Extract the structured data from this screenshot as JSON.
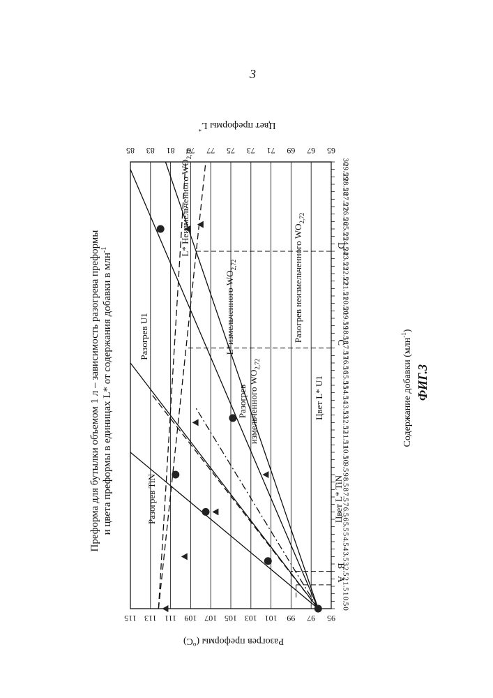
{
  "page_number": "3",
  "figure": {
    "title_line1": "Преформа для бутылки объемом 1 л – зависимость разогрева преформы",
    "title_line2": "и цвета преформы в единицах L* от содержания добавки в млн",
    "title_sup": "-1",
    "caption": "ФИГ.3",
    "x_axis_label": "Содержание добавки (млн",
    "x_axis_label_sup": "-1",
    "x_axis_label_end": ")",
    "y_left_label": "Разогрев преформы (",
    "y_left_label_sup": "o",
    "y_left_label_end": "C)",
    "y_right_label": "Цвет преформы L",
    "y_right_label_sup": "*",
    "markers": [
      "A",
      "B",
      "C",
      "D"
    ],
    "labels": {
      "heat_tin": "Разогрев TiN",
      "heat_u1": "Разогрев U1",
      "heat_milled_1": "Разогрев",
      "heat_milled_2": "измельченного WO",
      "heat_milled_sub": "2,72",
      "heat_unmilled": "Разогрев неизмельченного WO",
      "heat_unmilled_sub": "2,72",
      "color_unmilled": "L* Неизмельченного WO",
      "color_unmilled_sub": "2,72",
      "color_milled": "L*измельченного WO",
      "color_milled_sub": "2,72",
      "color_u1": "Цвет L* U1",
      "color_tin": "Цвет L* TiN"
    }
  },
  "chart_data": {
    "type": "line",
    "title": "Преформа для бутылки объемом 1 л – зависимость разогрева преформы и цвета преформы в единицах L* от содержания добавки в млн-1",
    "xlabel": "Содержание добавки (млн-1)",
    "ylabel_left": "Разогрев преформы (oC)",
    "ylabel_right": "Цвет преформы L*",
    "xlim": [
      0,
      30
    ],
    "ylim_left": [
      95,
      115
    ],
    "ylim_right": [
      65,
      85
    ],
    "x_ticks": [
      "0",
      "0.5",
      "1",
      "1.5",
      "2",
      "2.5",
      "3",
      "3.5",
      "4",
      "4.5",
      "5",
      "5.5",
      "6",
      "6.5",
      "7",
      "7.5",
      "8",
      "8.5",
      "9",
      "9.5",
      "10",
      "10.5",
      "11",
      "11.5",
      "12",
      "12.5",
      "13",
      "13.5",
      "14",
      "14.5",
      "15",
      "15.5",
      "16",
      "16.5",
      "17",
      "17.5",
      "18",
      "18.5",
      "19",
      "19.5",
      "20",
      "20.5",
      "21",
      "21.5",
      "22",
      "22.5",
      "23",
      "23.5",
      "24",
      "24.5",
      "25",
      "25.5",
      "26",
      "26.5",
      "27",
      "27.5",
      "28",
      "28.5",
      "29",
      "29.5",
      "30"
    ],
    "y_left_ticks": [
      "95",
      "97",
      "99",
      "101",
      "103",
      "105",
      "107",
      "109",
      "111",
      "113",
      "115"
    ],
    "y_right_ticks": [
      "65",
      "67",
      "69",
      "71",
      "73",
      "75",
      "77",
      "79",
      "81",
      "83",
      "85"
    ],
    "grid": true,
    "orientation": "rotated 90° counter-clockwise on page",
    "series": [
      {
        "name": "Разогрев TiN",
        "axis": "left",
        "style": "solid",
        "x": [
          0,
          10.5
        ],
        "y": [
          96.3,
          115
        ]
      },
      {
        "name": "Разогрев U1",
        "axis": "left",
        "style": "solid",
        "x": [
          0,
          16.5
        ],
        "y": [
          96.3,
          115
        ]
      },
      {
        "name": "Разогрев измельченного WO2,72",
        "axis": "left",
        "style": "solid",
        "x": [
          0,
          29.5
        ],
        "y": [
          96.3,
          115
        ]
      },
      {
        "name": "Разогрев неизмельченного WO2,72",
        "axis": "left",
        "style": "solid",
        "x": [
          0,
          30
        ],
        "y": [
          96.3,
          111.5
        ]
      },
      {
        "name": "L* Неизмельченного WO2,72",
        "axis": "right",
        "style": "dashed",
        "x": [
          0,
          30
        ],
        "y": [
          82.2,
          79.5
        ]
      },
      {
        "name": "L*измельченного WO2,72",
        "axis": "right",
        "style": "dashed",
        "x": [
          0,
          30
        ],
        "y": [
          82.2,
          77.5
        ]
      },
      {
        "name": "Цвет L* U1",
        "axis": "right",
        "style": "dashed",
        "x": [
          0,
          14.5
        ],
        "y": [
          66.3,
          83
        ]
      },
      {
        "name": "Цвет L* TiN",
        "axis": "right",
        "style": "dashdot",
        "x": [
          0,
          13.5
        ],
        "y": [
          66.3,
          78.5
        ]
      }
    ],
    "points": [
      {
        "x": 0,
        "y": 96.3
      },
      {
        "x": 3.2,
        "y": 101.3
      },
      {
        "x": 6.5,
        "y": 107.5
      },
      {
        "x": 9,
        "y": 110.5
      },
      {
        "x": 12.8,
        "y": 104.8
      },
      {
        "x": 25.5,
        "y": 112
      },
      {
        "x": 0,
        "y": 111.5
      },
      {
        "x": 3.5,
        "y": 109.6
      },
      {
        "x": 6.5,
        "y": 106.5
      },
      {
        "x": 9,
        "y": 101.5
      },
      {
        "x": 12.5,
        "y": 108.5
      },
      {
        "x": 25.5,
        "y": 109.3
      },
      {
        "x": 25.8,
        "y": 108
      }
    ],
    "reference_lines": [
      {
        "label": "A",
        "x": 1.6,
        "y": 98.5
      },
      {
        "label": "B",
        "x": 2.5,
        "y": 99
      },
      {
        "label": "C",
        "x": 17.5,
        "y": 109.5
      },
      {
        "label": "D",
        "x": 24,
        "y": 108.5
      }
    ]
  }
}
